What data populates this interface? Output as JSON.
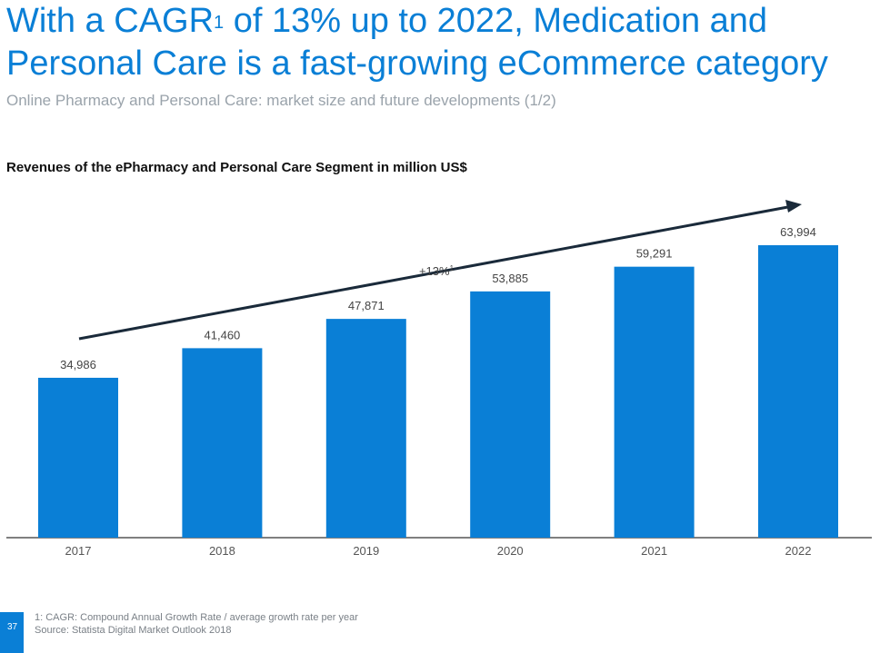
{
  "header": {
    "title_part1": "With a CAGR",
    "title_sup": "1",
    "title_part2": " of 13% up to 2022, Medication and Personal Care is a fast-growing eCommerce category",
    "subtitle": "Online Pharmacy and Personal Care: market size and future developments (1/2)"
  },
  "chart_data": {
    "type": "bar",
    "title": "Revenues of the ePharmacy and Personal Care Segment in million US$",
    "categories": [
      "2017",
      "2018",
      "2019",
      "2020",
      "2021",
      "2022"
    ],
    "values": [
      34986,
      41460,
      47871,
      53885,
      59291,
      63994
    ],
    "value_labels": [
      "34,986",
      "41,460",
      "47,871",
      "53,885",
      "59,291",
      "63,994"
    ],
    "ylim": [
      0,
      70000
    ],
    "grid": false,
    "bar_color": "#0a7fd6",
    "annotation": {
      "text": "+13%",
      "sup": "1"
    }
  },
  "footer": {
    "note1": "1: CAGR: Compound Annual Growth Rate / average growth rate per year",
    "source": "Source: Statista Digital Market Outlook 2018",
    "page_number": "37"
  }
}
